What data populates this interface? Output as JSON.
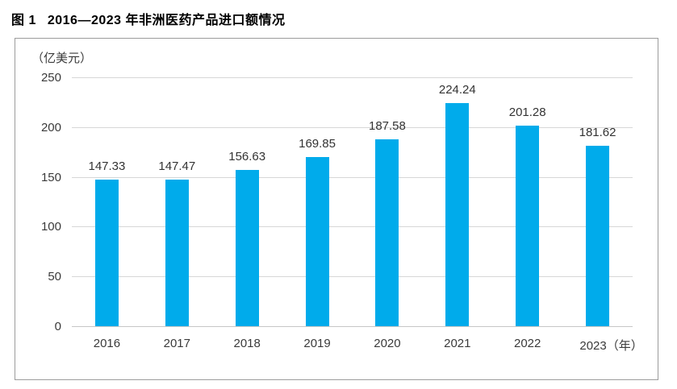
{
  "figure": {
    "title_prefix": "图 1",
    "title_text": "2016—2023 年非洲医药产品进口额情况"
  },
  "chart_data": {
    "type": "bar",
    "title": "图 1 2016—2023 年非洲医药产品进口额情况",
    "unit_label": "（亿美元）",
    "xlabel_suffix": "（年）",
    "categories": [
      "2016",
      "2017",
      "2018",
      "2019",
      "2020",
      "2021",
      "2022",
      "2023"
    ],
    "values": [
      147.33,
      147.47,
      156.63,
      169.85,
      187.58,
      224.24,
      201.28,
      181.62
    ],
    "value_labels": [
      "147.33",
      "147.47",
      "156.63",
      "169.85",
      "187.58",
      "224.24",
      "201.28",
      "181.62"
    ],
    "ylim": [
      0,
      250
    ],
    "y_ticks": [
      0,
      50,
      100,
      150,
      200,
      250
    ],
    "grid": true,
    "legend": "none",
    "bar_color": "#00abeb",
    "gridline_color": "#d7d7d7",
    "baseline_color": "#c6c6c6",
    "text_color": "#3a3a3a",
    "border_color": "#9c9c9c"
  }
}
